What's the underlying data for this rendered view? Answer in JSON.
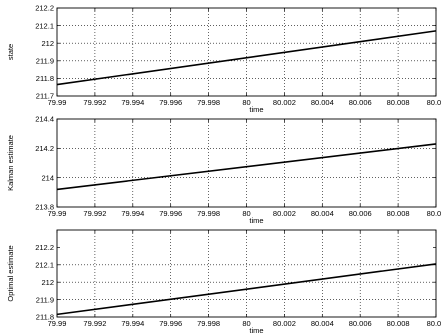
{
  "chart_data": [
    {
      "type": "line",
      "xlabel": "time",
      "ylabel": "state",
      "xlim": [
        79.99,
        80.01
      ],
      "ylim": [
        211.7,
        212.2
      ],
      "xticks": [
        79.99,
        79.992,
        79.994,
        79.996,
        79.998,
        80,
        80.002,
        80.004,
        80.006,
        80.008,
        80.01
      ],
      "xtick_labels": [
        "79.99",
        "79.992",
        "79.994",
        "79.996",
        "79.998",
        "80",
        "80.002",
        "80.004",
        "80.006",
        "80.008",
        "80.01"
      ],
      "yticks": [
        211.7,
        211.8,
        211.9,
        212,
        212.1,
        212.2
      ],
      "ytick_labels": [
        "211.7",
        "211.8",
        "211.9",
        "212",
        "212.1",
        "212.2"
      ],
      "grid": true,
      "series": [
        {
          "x": [
            79.99,
            80.01
          ],
          "y": [
            211.765,
            212.07
          ]
        }
      ]
    },
    {
      "type": "line",
      "xlabel": "time",
      "ylabel": "Kalman estimate",
      "xlim": [
        79.99,
        80.01
      ],
      "ylim": [
        213.8,
        214.4
      ],
      "xticks": [
        79.99,
        79.992,
        79.994,
        79.996,
        79.998,
        80,
        80.002,
        80.004,
        80.006,
        80.008,
        80.01
      ],
      "xtick_labels": [
        "79.99",
        "79.992",
        "79.994",
        "79.996",
        "79.998",
        "80",
        "80.002",
        "80.004",
        "80.006",
        "80.008",
        "80.01"
      ],
      "yticks": [
        213.8,
        214,
        214.2,
        214.4
      ],
      "ytick_labels": [
        "213.8",
        "214",
        "214.2",
        "214.4"
      ],
      "grid": true,
      "series": [
        {
          "x": [
            79.99,
            80.01
          ],
          "y": [
            213.92,
            214.23
          ]
        }
      ]
    },
    {
      "type": "line",
      "xlabel": "time",
      "ylabel": "Optimal estimate",
      "xlim": [
        79.99,
        80.01
      ],
      "ylim": [
        211.8,
        212.3
      ],
      "xticks": [
        79.99,
        79.992,
        79.994,
        79.996,
        79.998,
        80,
        80.002,
        80.004,
        80.006,
        80.008,
        80.01
      ],
      "xtick_labels": [
        "79.99",
        "79.992",
        "79.994",
        "79.996",
        "79.998",
        "80",
        "80.002",
        "80.004",
        "80.006",
        "80.008",
        "80.01"
      ],
      "yticks": [
        211.8,
        211.9,
        212,
        212.1,
        212.2
      ],
      "ytick_labels": [
        "211.8",
        "211.9",
        "212",
        "212.1",
        "212.2"
      ],
      "grid": true,
      "series": [
        {
          "x": [
            79.99,
            80.01
          ],
          "y": [
            211.815,
            212.105
          ]
        }
      ]
    }
  ]
}
